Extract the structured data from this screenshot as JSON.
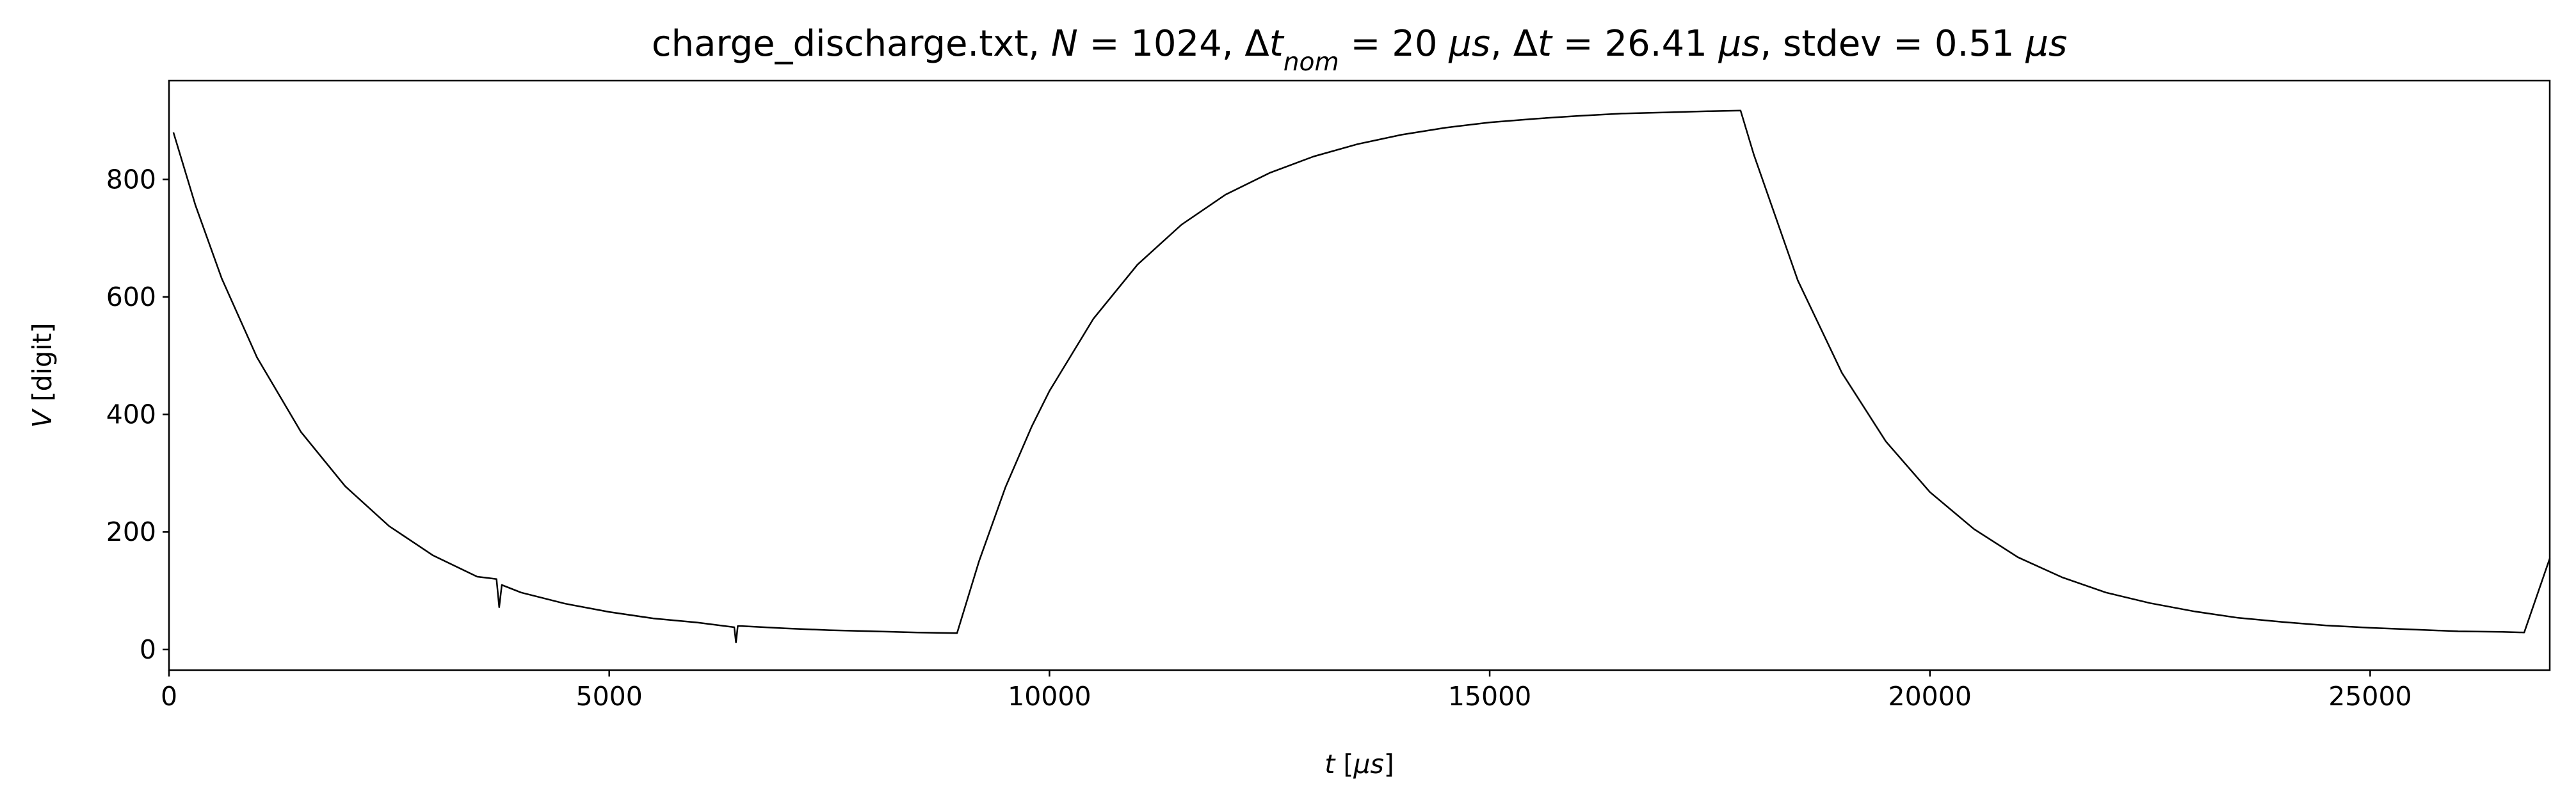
{
  "chart_data": {
    "type": "line",
    "title": [
      "charge_discharge.txt, ",
      "N",
      " = 1024, Δ",
      "t",
      "nom",
      " = 20 ",
      "μs",
      ", Δ",
      "t",
      " = 26.41 ",
      "μs",
      ", stdev = 0.51 ",
      "μs"
    ],
    "xlabel": [
      "t",
      " [",
      "μs",
      "]"
    ],
    "ylabel": [
      "V",
      " [digit]"
    ],
    "color": "#000000",
    "xlim": [
      0,
      27040
    ],
    "ylim": [
      -35,
      968
    ],
    "xticks": [
      0,
      5000,
      10000,
      15000,
      20000,
      25000
    ],
    "yticks": [
      0,
      200,
      400,
      600,
      800
    ],
    "x": [
      50,
      300,
      600,
      1000,
      1500,
      2000,
      2500,
      3000,
      3500,
      3720,
      3750,
      3780,
      4000,
      4500,
      5000,
      5500,
      6000,
      6420,
      6440,
      6460,
      6500,
      7000,
      7500,
      8000,
      8500,
      8950,
      9200,
      9500,
      9800,
      10000,
      10500,
      11000,
      11500,
      12000,
      12500,
      13000,
      13500,
      14000,
      14500,
      15000,
      15500,
      16000,
      16500,
      17000,
      17500,
      17850,
      18000,
      18500,
      19000,
      19500,
      20000,
      20500,
      21000,
      21500,
      22000,
      22500,
      23000,
      23500,
      24000,
      24500,
      25000,
      25500,
      26000,
      26500,
      26750,
      27040
    ],
    "values": [
      880,
      756,
      631,
      497,
      370,
      278,
      210,
      160,
      124,
      120,
      72,
      110,
      97,
      78,
      64,
      53,
      46,
      38,
      12,
      40,
      40,
      36,
      33,
      31,
      29,
      28,
      150,
      276,
      380,
      440,
      563,
      655,
      723,
      774,
      811,
      839,
      860,
      876,
      888,
      897,
      903,
      908,
      912,
      914,
      916,
      917,
      842,
      628,
      471,
      354,
      268,
      205,
      157,
      123,
      97,
      79,
      65,
      54,
      47,
      41,
      37,
      34,
      31,
      30,
      29,
      155
    ]
  }
}
